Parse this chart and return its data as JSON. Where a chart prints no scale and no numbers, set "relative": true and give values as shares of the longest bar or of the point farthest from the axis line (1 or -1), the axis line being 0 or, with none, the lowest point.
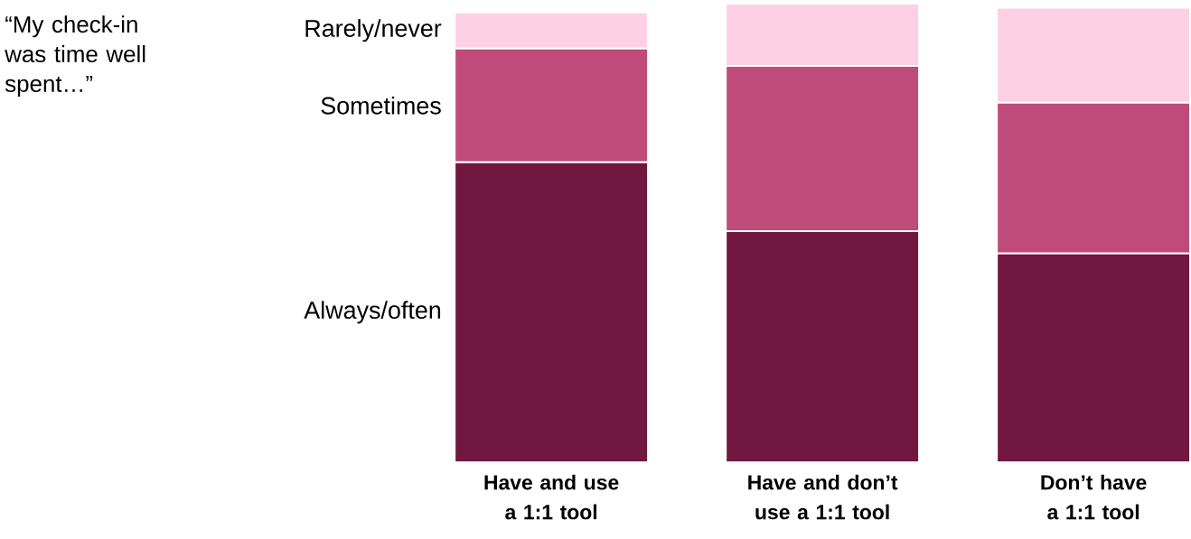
{
  "chart_data": {
    "type": "bar",
    "title": "“My check-in was time well spent…”",
    "stacked": true,
    "relative": true,
    "categories": [
      "Have and use a 1:1 tool",
      "Have and don’t use a 1:1 tool",
      "Don’t have a 1:1 tool"
    ],
    "series": [
      {
        "name": "Always/often",
        "color": "#721740",
        "values": [
          0.654,
          0.504,
          0.455
        ]
      },
      {
        "name": "Sometimes",
        "color": "#bf4b7b",
        "values": [
          0.248,
          0.36,
          0.329
        ]
      },
      {
        "name": "Rarely/never",
        "color": "#fdd0e3",
        "values": [
          0.079,
          0.136,
          0.207
        ]
      }
    ]
  }
}
